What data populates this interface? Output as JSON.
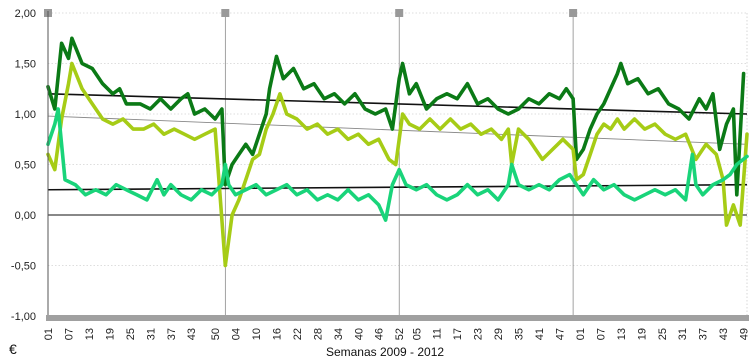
{
  "chart_data": {
    "type": "line",
    "title": "",
    "xlabel": "Semanas 2009 - 2012",
    "ylabel": "",
    "unit_label": "€",
    "ylim": [
      -1.0,
      2.0
    ],
    "yticks": [
      "2,00",
      "1,50",
      "1,00",
      "0,50",
      "0,00",
      "-0,50",
      "-1,00"
    ],
    "ytick_values": [
      2.0,
      1.5,
      1.0,
      0.5,
      0.0,
      -0.5,
      -1.0
    ],
    "xlim": [
      1,
      206
    ],
    "xticks": [
      "01",
      "07",
      "13",
      "19",
      "25",
      "31",
      "37",
      "43",
      "50",
      "04",
      "10",
      "16",
      "22",
      "28",
      "34",
      "40",
      "46",
      "52",
      "05",
      "11",
      "17",
      "23",
      "29",
      "35",
      "41",
      "47",
      "01",
      "07",
      "13",
      "19",
      "25",
      "31",
      "37",
      "43",
      "49"
    ],
    "xtick_positions": [
      1,
      7,
      13,
      19,
      25,
      31,
      37,
      43,
      50,
      56,
      62,
      68,
      74,
      80,
      86,
      92,
      98,
      104,
      109,
      115,
      121,
      127,
      133,
      139,
      145,
      151,
      157,
      163,
      169,
      175,
      181,
      187,
      193,
      199,
      205
    ],
    "year_boundaries": [
      1,
      53,
      104,
      155
    ],
    "grid": true,
    "colors": {
      "dark_green": "#0b7a16",
      "light_green": "#a6cc16",
      "mint_green": "#19d47a",
      "trend": "#111111",
      "grid": "#bdbdbd",
      "axis": "#999999"
    },
    "series": [
      {
        "color": "#0b7a16",
        "points": [
          [
            1,
            1.27
          ],
          [
            3,
            1.05
          ],
          [
            5,
            1.7
          ],
          [
            7,
            1.55
          ],
          [
            8,
            1.75
          ],
          [
            11,
            1.5
          ],
          [
            14,
            1.45
          ],
          [
            17,
            1.3
          ],
          [
            20,
            1.2
          ],
          [
            22,
            1.25
          ],
          [
            24,
            1.1
          ],
          [
            28,
            1.1
          ],
          [
            31,
            1.05
          ],
          [
            34,
            1.15
          ],
          [
            37,
            1.05
          ],
          [
            40,
            1.15
          ],
          [
            42,
            1.2
          ],
          [
            44,
            1.0
          ],
          [
            47,
            1.05
          ],
          [
            50,
            0.95
          ],
          [
            52,
            1.05
          ],
          [
            53,
            0.3
          ],
          [
            55,
            0.5
          ],
          [
            57,
            0.6
          ],
          [
            59,
            0.7
          ],
          [
            61,
            0.6
          ],
          [
            63,
            0.8
          ],
          [
            65,
            1.0
          ],
          [
            66,
            1.25
          ],
          [
            68,
            1.57
          ],
          [
            70,
            1.35
          ],
          [
            73,
            1.45
          ],
          [
            76,
            1.25
          ],
          [
            79,
            1.3
          ],
          [
            82,
            1.15
          ],
          [
            85,
            1.2
          ],
          [
            88,
            1.1
          ],
          [
            91,
            1.2
          ],
          [
            94,
            1.05
          ],
          [
            97,
            1.0
          ],
          [
            100,
            1.05
          ],
          [
            102,
            0.85
          ],
          [
            104,
            1.35
          ],
          [
            105,
            1.5
          ],
          [
            107,
            1.2
          ],
          [
            109,
            1.3
          ],
          [
            112,
            1.05
          ],
          [
            115,
            1.15
          ],
          [
            118,
            1.2
          ],
          [
            121,
            1.15
          ],
          [
            124,
            1.3
          ],
          [
            127,
            1.1
          ],
          [
            130,
            1.15
          ],
          [
            133,
            1.05
          ],
          [
            136,
            1.0
          ],
          [
            139,
            1.05
          ],
          [
            142,
            1.15
          ],
          [
            145,
            1.1
          ],
          [
            148,
            1.2
          ],
          [
            151,
            1.15
          ],
          [
            153,
            1.25
          ],
          [
            155,
            1.15
          ],
          [
            156,
            0.55
          ],
          [
            158,
            0.65
          ],
          [
            160,
            0.85
          ],
          [
            162,
            1.0
          ],
          [
            164,
            1.1
          ],
          [
            166,
            1.25
          ],
          [
            168,
            1.4
          ],
          [
            169,
            1.5
          ],
          [
            171,
            1.3
          ],
          [
            174,
            1.35
          ],
          [
            177,
            1.2
          ],
          [
            180,
            1.25
          ],
          [
            183,
            1.1
          ],
          [
            186,
            1.05
          ],
          [
            189,
            0.95
          ],
          [
            192,
            1.15
          ],
          [
            194,
            1.05
          ],
          [
            196,
            1.2
          ],
          [
            198,
            0.65
          ],
          [
            200,
            0.9
          ],
          [
            202,
            1.05
          ],
          [
            203,
            0.2
          ],
          [
            205,
            1.4
          ]
        ]
      },
      {
        "color": "#a6cc16",
        "points": [
          [
            1,
            0.6
          ],
          [
            3,
            0.45
          ],
          [
            5,
            0.95
          ],
          [
            7,
            1.3
          ],
          [
            8,
            1.5
          ],
          [
            11,
            1.25
          ],
          [
            14,
            1.1
          ],
          [
            17,
            0.95
          ],
          [
            20,
            0.9
          ],
          [
            23,
            0.95
          ],
          [
            26,
            0.85
          ],
          [
            29,
            0.85
          ],
          [
            32,
            0.9
          ],
          [
            35,
            0.8
          ],
          [
            38,
            0.85
          ],
          [
            41,
            0.8
          ],
          [
            44,
            0.75
          ],
          [
            47,
            0.8
          ],
          [
            50,
            0.85
          ],
          [
            53,
            -0.5
          ],
          [
            55,
            0.0
          ],
          [
            57,
            0.15
          ],
          [
            59,
            0.35
          ],
          [
            61,
            0.55
          ],
          [
            63,
            0.6
          ],
          [
            65,
            0.85
          ],
          [
            67,
            1.0
          ],
          [
            69,
            1.2
          ],
          [
            71,
            1.0
          ],
          [
            74,
            0.95
          ],
          [
            77,
            0.85
          ],
          [
            80,
            0.9
          ],
          [
            83,
            0.8
          ],
          [
            86,
            0.85
          ],
          [
            89,
            0.75
          ],
          [
            92,
            0.8
          ],
          [
            95,
            0.7
          ],
          [
            98,
            0.75
          ],
          [
            101,
            0.55
          ],
          [
            103,
            0.5
          ],
          [
            105,
            1.0
          ],
          [
            107,
            0.9
          ],
          [
            110,
            0.85
          ],
          [
            113,
            0.95
          ],
          [
            116,
            0.85
          ],
          [
            119,
            0.95
          ],
          [
            122,
            0.85
          ],
          [
            125,
            0.9
          ],
          [
            128,
            0.8
          ],
          [
            131,
            0.85
          ],
          [
            134,
            0.75
          ],
          [
            136,
            0.85
          ],
          [
            137,
            0.5
          ],
          [
            139,
            0.85
          ],
          [
            142,
            0.75
          ],
          [
            144,
            0.65
          ],
          [
            146,
            0.55
          ],
          [
            149,
            0.65
          ],
          [
            152,
            0.75
          ],
          [
            155,
            0.65
          ],
          [
            156,
            0.35
          ],
          [
            158,
            0.4
          ],
          [
            160,
            0.6
          ],
          [
            162,
            0.8
          ],
          [
            164,
            0.9
          ],
          [
            166,
            0.85
          ],
          [
            168,
            0.95
          ],
          [
            170,
            0.85
          ],
          [
            173,
            0.95
          ],
          [
            176,
            0.85
          ],
          [
            179,
            0.9
          ],
          [
            182,
            0.8
          ],
          [
            185,
            0.75
          ],
          [
            188,
            0.8
          ],
          [
            191,
            0.55
          ],
          [
            194,
            0.7
          ],
          [
            197,
            0.6
          ],
          [
            199,
            0.35
          ],
          [
            200,
            -0.1
          ],
          [
            202,
            0.1
          ],
          [
            204,
            -0.1
          ],
          [
            206,
            0.8
          ]
        ]
      },
      {
        "color": "#19d47a",
        "points": [
          [
            1,
            0.7
          ],
          [
            3,
            0.9
          ],
          [
            4,
            1.05
          ],
          [
            6,
            0.35
          ],
          [
            9,
            0.3
          ],
          [
            12,
            0.2
          ],
          [
            15,
            0.25
          ],
          [
            18,
            0.2
          ],
          [
            21,
            0.3
          ],
          [
            24,
            0.25
          ],
          [
            27,
            0.2
          ],
          [
            30,
            0.15
          ],
          [
            33,
            0.35
          ],
          [
            35,
            0.2
          ],
          [
            37,
            0.3
          ],
          [
            40,
            0.2
          ],
          [
            43,
            0.15
          ],
          [
            46,
            0.25
          ],
          [
            49,
            0.2
          ],
          [
            52,
            0.3
          ],
          [
            53,
            0.5
          ],
          [
            54,
            0.3
          ],
          [
            56,
            0.2
          ],
          [
            59,
            0.25
          ],
          [
            62,
            0.3
          ],
          [
            65,
            0.2
          ],
          [
            68,
            0.25
          ],
          [
            71,
            0.3
          ],
          [
            74,
            0.2
          ],
          [
            77,
            0.25
          ],
          [
            80,
            0.15
          ],
          [
            83,
            0.2
          ],
          [
            86,
            0.15
          ],
          [
            89,
            0.25
          ],
          [
            92,
            0.15
          ],
          [
            95,
            0.2
          ],
          [
            98,
            0.1
          ],
          [
            100,
            -0.05
          ],
          [
            102,
            0.3
          ],
          [
            104,
            0.45
          ],
          [
            106,
            0.3
          ],
          [
            109,
            0.25
          ],
          [
            112,
            0.3
          ],
          [
            115,
            0.2
          ],
          [
            118,
            0.15
          ],
          [
            121,
            0.2
          ],
          [
            124,
            0.3
          ],
          [
            127,
            0.2
          ],
          [
            130,
            0.25
          ],
          [
            133,
            0.15
          ],
          [
            136,
            0.3
          ],
          [
            137,
            0.5
          ],
          [
            139,
            0.3
          ],
          [
            142,
            0.25
          ],
          [
            145,
            0.3
          ],
          [
            148,
            0.25
          ],
          [
            151,
            0.35
          ],
          [
            154,
            0.4
          ],
          [
            156,
            0.3
          ],
          [
            158,
            0.2
          ],
          [
            161,
            0.35
          ],
          [
            164,
            0.25
          ],
          [
            167,
            0.3
          ],
          [
            170,
            0.2
          ],
          [
            173,
            0.15
          ],
          [
            176,
            0.2
          ],
          [
            179,
            0.25
          ],
          [
            182,
            0.2
          ],
          [
            185,
            0.25
          ],
          [
            188,
            0.15
          ],
          [
            190,
            0.6
          ],
          [
            191,
            0.3
          ],
          [
            193,
            0.2
          ],
          [
            196,
            0.3
          ],
          [
            199,
            0.35
          ],
          [
            201,
            0.4
          ],
          [
            203,
            0.5
          ],
          [
            206,
            0.58
          ]
        ]
      }
    ],
    "trend_lines": [
      {
        "color": "#111111",
        "width": 1.6,
        "from": [
          1,
          1.2
        ],
        "to": [
          206,
          1.0
        ]
      },
      {
        "color": "#111111",
        "width": 1.6,
        "from": [
          1,
          0.25
        ],
        "to": [
          206,
          0.3
        ]
      },
      {
        "color": "#888888",
        "width": 0.9,
        "from": [
          1,
          0.98
        ],
        "to": [
          206,
          0.7
        ]
      }
    ]
  }
}
